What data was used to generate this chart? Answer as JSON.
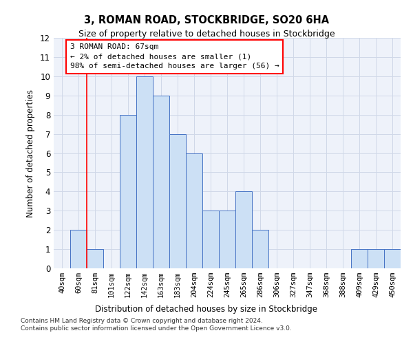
{
  "title": "3, ROMAN ROAD, STOCKBRIDGE, SO20 6HA",
  "subtitle": "Size of property relative to detached houses in Stockbridge",
  "xlabel": "Distribution of detached houses by size in Stockbridge",
  "ylabel": "Number of detached properties",
  "bar_labels": [
    "40sqm",
    "60sqm",
    "81sqm",
    "101sqm",
    "122sqm",
    "142sqm",
    "163sqm",
    "183sqm",
    "204sqm",
    "224sqm",
    "245sqm",
    "265sqm",
    "286sqm",
    "306sqm",
    "327sqm",
    "347sqm",
    "368sqm",
    "388sqm",
    "409sqm",
    "429sqm",
    "450sqm"
  ],
  "bar_values": [
    0,
    2,
    1,
    0,
    8,
    10,
    9,
    7,
    6,
    3,
    3,
    4,
    2,
    0,
    0,
    0,
    0,
    0,
    1,
    1,
    1
  ],
  "bar_color": "#cce0f5",
  "bar_edge_color": "#4472c4",
  "grid_color": "#d0d8e8",
  "background_color": "#eef2fa",
  "annotation_box_text": "3 ROMAN ROAD: 67sqm\n← 2% of detached houses are smaller (1)\n98% of semi-detached houses are larger (56) →",
  "annotation_box_color": "red",
  "red_line_x": 1.5,
  "ylim": [
    0,
    12
  ],
  "yticks": [
    0,
    1,
    2,
    3,
    4,
    5,
    6,
    7,
    8,
    9,
    10,
    11,
    12
  ],
  "footer1": "Contains HM Land Registry data © Crown copyright and database right 2024.",
  "footer2": "Contains public sector information licensed under the Open Government Licence v3.0."
}
